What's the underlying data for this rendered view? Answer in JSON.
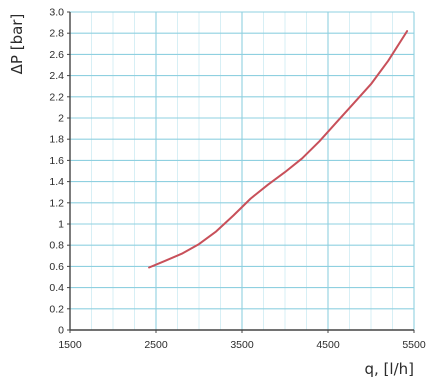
{
  "chart_data": {
    "type": "line",
    "xlabel": "q, [l/h]",
    "ylabel": "ΔP [bar]",
    "xlim": [
      1500,
      5500
    ],
    "ylim": [
      0,
      3.0
    ],
    "grid": true,
    "x_ticks": [
      "1500",
      "2500",
      "3500",
      "4500",
      "5500"
    ],
    "y_ticks": [
      "0",
      "0.2",
      "0.4",
      "0.6",
      "0.8",
      "1",
      "1.2",
      "1.4",
      "1.6",
      "1.8",
      "2",
      "2.2",
      "2.4",
      "2.6",
      "2.8",
      "3.0"
    ],
    "colors": {
      "line": "#c8505a",
      "grid": "#8fd0e0",
      "axis": "#444444",
      "minor_grid": "#d7eff5"
    },
    "series": [
      {
        "x": [
          2420,
          2600,
          2800,
          3000,
          3200,
          3400,
          3600,
          3800,
          4000,
          4200,
          4400,
          4600,
          4800,
          5000,
          5200,
          5420
        ],
        "y": [
          0.59,
          0.65,
          0.72,
          0.81,
          0.93,
          1.08,
          1.24,
          1.37,
          1.49,
          1.62,
          1.78,
          1.96,
          2.14,
          2.32,
          2.54,
          2.82
        ]
      }
    ]
  }
}
